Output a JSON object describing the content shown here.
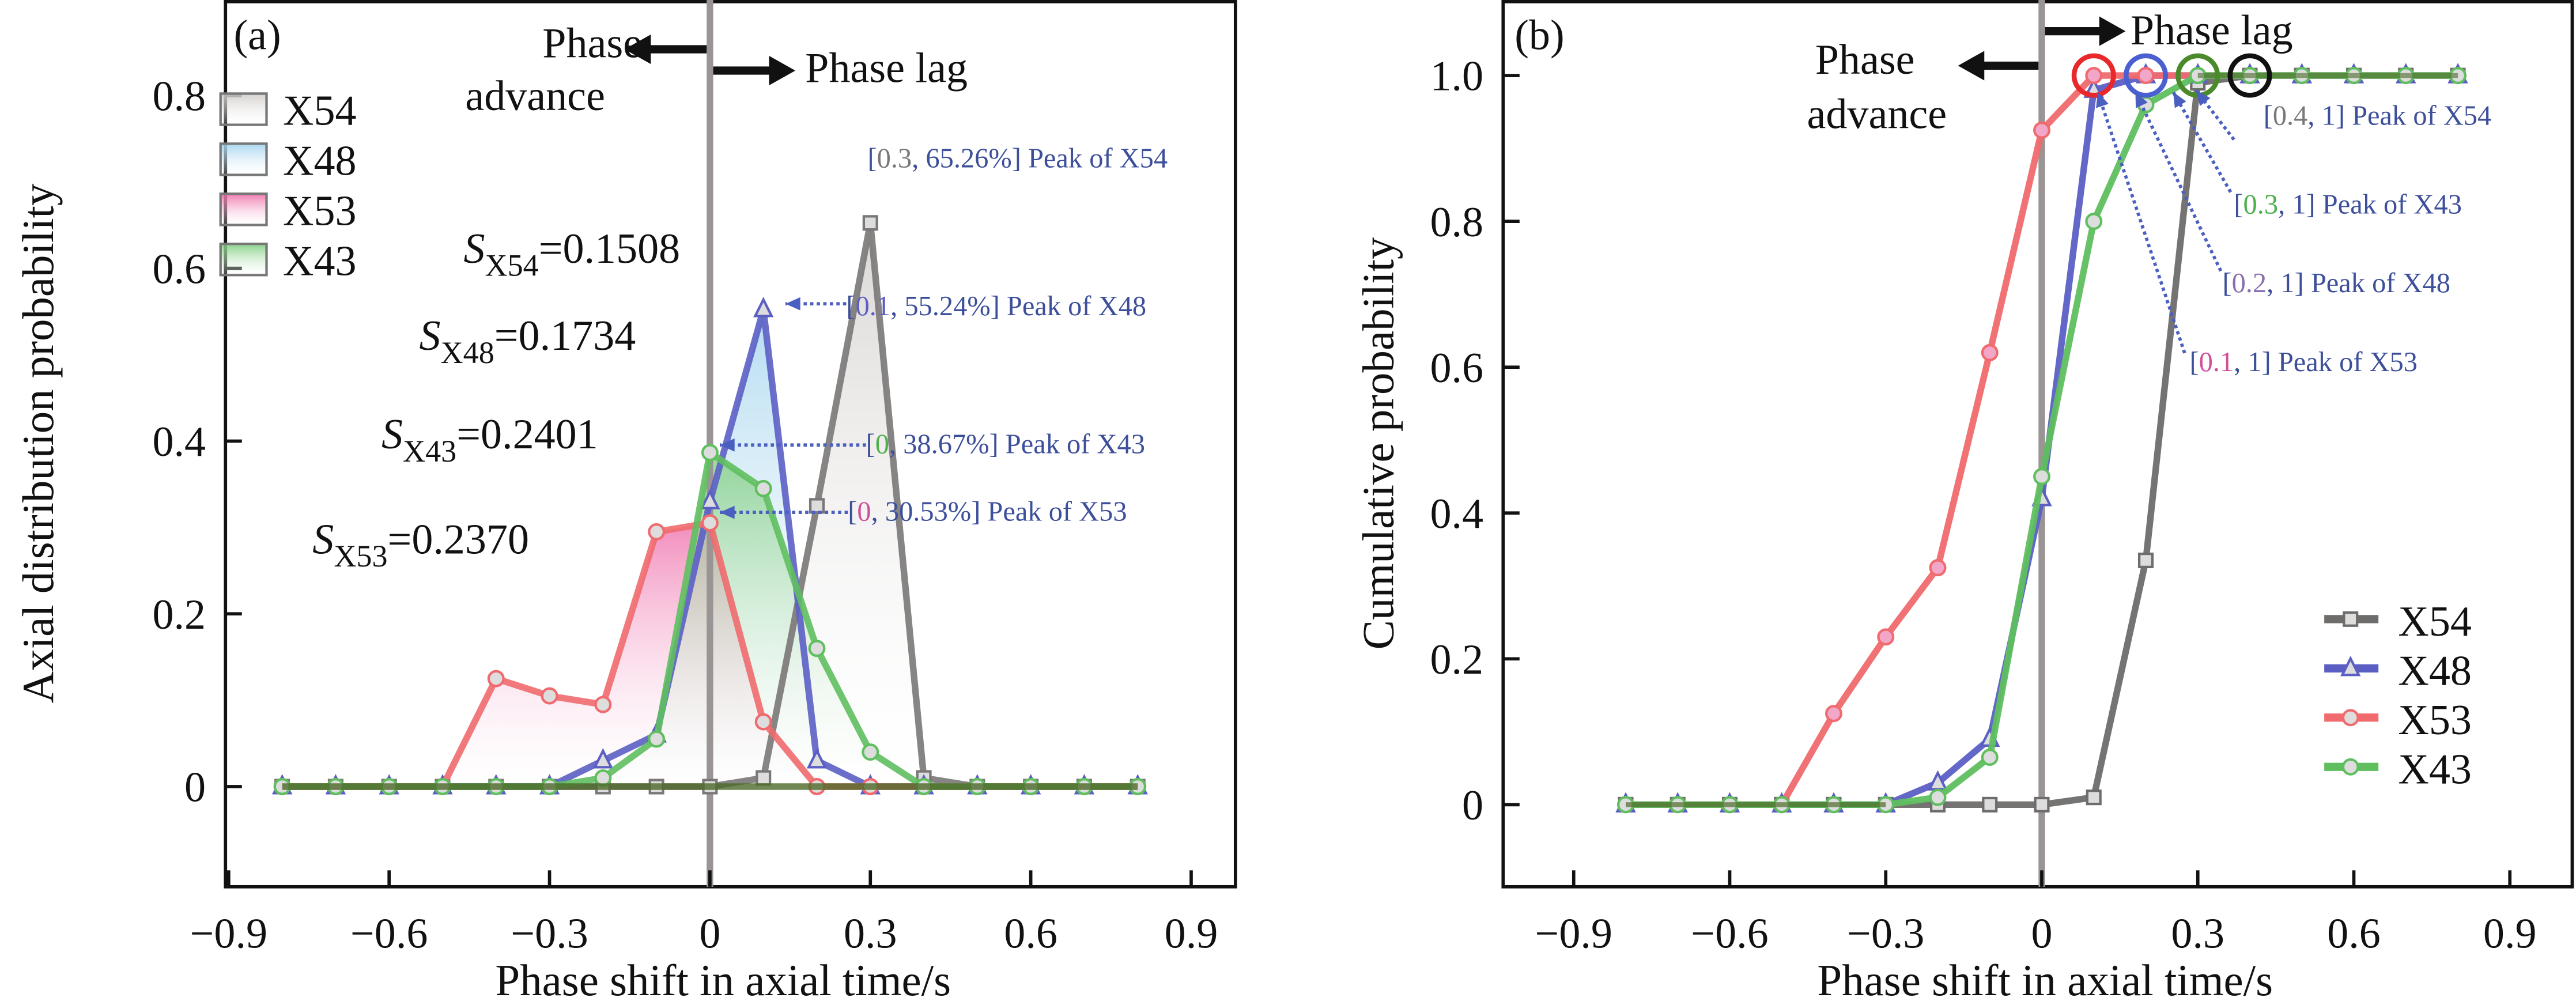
{
  "chart_data": [
    {
      "type": "area",
      "panel_label": "(a)",
      "xlabel": "Phase shift in axial time/s",
      "ylabel": "Axial distribution probability",
      "xlim": [
        -0.9,
        0.9
      ],
      "ylim": [
        -0.1,
        0.9
      ],
      "xticks": [
        "-0.9",
        "-0.6",
        "-0.3",
        "0",
        "0.3",
        "0.6",
        "0.9"
      ],
      "yticks": [
        "0",
        "0.2",
        "0.4",
        "0.6",
        "0.8"
      ],
      "grid": false,
      "legend_position": "top-left",
      "phase_advance_label": "Phase advance",
      "phase_advance_word1": "Phase",
      "phase_advance_word2": "advance",
      "phase_lag_label": "Phase lag",
      "x": [
        -0.8,
        -0.7,
        -0.6,
        -0.5,
        -0.4,
        -0.3,
        -0.2,
        -0.1,
        0,
        0.1,
        0.2,
        0.3,
        0.4,
        0.5,
        0.6,
        0.7,
        0.8
      ],
      "series": [
        {
          "name": "X54",
          "color": "#7a7777",
          "fill": "#cfcbc8",
          "marker": "square",
          "values": [
            0,
            0,
            0,
            0,
            0,
            0,
            0,
            0,
            0,
            0.01,
            0.325,
            0.6526,
            0.01,
            0,
            0,
            0,
            0
          ]
        },
        {
          "name": "X48",
          "color": "#5b5fc4",
          "fill": "#9fd2ee",
          "marker": "triangle",
          "values": [
            0,
            0,
            0,
            0,
            0,
            0,
            0.03,
            0.06,
            0.33,
            0.5524,
            0.03,
            0,
            0,
            0,
            0,
            0,
            0
          ]
        },
        {
          "name": "X53",
          "color": "#f06a6e",
          "fill": "#ee6aa8",
          "marker": "circle",
          "values": [
            0,
            0,
            0,
            0,
            0.125,
            0.105,
            0.095,
            0.295,
            0.3053,
            0.075,
            0,
            0,
            0,
            0,
            0,
            0,
            0
          ]
        },
        {
          "name": "X43",
          "color": "#5fbf5f",
          "fill": "#7dcc7d",
          "marker": "circle",
          "values": [
            0,
            0,
            0,
            0,
            0,
            0,
            0.01,
            0.055,
            0.3867,
            0.345,
            0.16,
            0.04,
            0,
            0,
            0,
            0,
            0
          ]
        }
      ],
      "s_values": [
        {
          "sym": "S",
          "sub": "X54",
          "val": "=0.1508"
        },
        {
          "sym": "S",
          "sub": "X48",
          "val": "=0.1734"
        },
        {
          "sym": "S",
          "sub": "X43",
          "val": "=0.2401"
        },
        {
          "sym": "S",
          "sub": "X53",
          "val": "=0.2370"
        }
      ],
      "annotations": [
        {
          "open": "[",
          "num": "0.3",
          "num_color": "#7a7777",
          "rest": ", 65.26%] Peak of X54"
        },
        {
          "open": "[",
          "num": "0.1",
          "num_color": "#5b5fc4",
          "rest": ", 55.24%] Peak of X48"
        },
        {
          "open": "[",
          "num": "0",
          "num_color": "#4cb04c",
          "rest": ", 38.67%] Peak of X43"
        },
        {
          "open": "[",
          "num": "0",
          "num_color": "#d0509a",
          "rest": ", 30.53%] Peak of X53"
        }
      ]
    },
    {
      "type": "line",
      "panel_label": "(b)",
      "xlabel": "Phase shift in axial time/s",
      "ylabel": "Cumulative probability",
      "xlim": [
        -0.9,
        0.9
      ],
      "ylim": [
        -0.1,
        1.1
      ],
      "xticks": [
        "-0.9",
        "-0.6",
        "-0.3",
        "0",
        "0.3",
        "0.6",
        "0.9"
      ],
      "yticks": [
        "0",
        "0.2",
        "0.4",
        "0.6",
        "0.8",
        "1.0"
      ],
      "grid": false,
      "legend_position": "bottom-right",
      "phase_advance_word1": "Phase",
      "phase_advance_word2": "advance",
      "phase_lag_label": "Phase lag",
      "x": [
        -0.8,
        -0.7,
        -0.6,
        -0.5,
        -0.4,
        -0.3,
        -0.2,
        -0.1,
        0,
        0.1,
        0.2,
        0.3,
        0.4,
        0.5,
        0.6,
        0.7,
        0.8
      ],
      "series": [
        {
          "name": "X54",
          "color": "#6f6c6c",
          "marker": "square",
          "values": [
            0,
            0,
            0,
            0,
            0,
            0,
            0,
            0,
            0,
            0.01,
            0.335,
            0.99,
            1,
            1,
            1,
            1,
            1
          ]
        },
        {
          "name": "X48",
          "color": "#5b5fc4",
          "marker": "triangle",
          "values": [
            0,
            0,
            0,
            0,
            0,
            0,
            0.03,
            0.09,
            0.42,
            0.98,
            1,
            1,
            1,
            1,
            1,
            1,
            1
          ]
        },
        {
          "name": "X53",
          "color": "#f06a6e",
          "marker": "circle",
          "values": [
            0,
            0,
            0,
            0,
            0.125,
            0.23,
            0.325,
            0.62,
            0.925,
            1,
            1,
            1,
            1,
            1,
            1,
            1,
            1
          ]
        },
        {
          "name": "X43",
          "color": "#5fbf5f",
          "marker": "circle",
          "values": [
            0,
            0,
            0,
            0,
            0,
            0,
            0.01,
            0.065,
            0.45,
            0.8,
            0.96,
            1,
            1,
            1,
            1,
            1,
            1
          ]
        }
      ],
      "peak_circles": [
        {
          "x": 0.1,
          "y": 1,
          "color": "#e8282a"
        },
        {
          "x": 0.2,
          "y": 1,
          "color": "#4a5fd0"
        },
        {
          "x": 0.3,
          "y": 1,
          "color": "#4a8a2a"
        },
        {
          "x": 0.4,
          "y": 1,
          "color": "#111111"
        }
      ],
      "annotations": [
        {
          "open": "[",
          "num": "0.4",
          "num_color": "#7a7777",
          "rest": ", 1] Peak of X54"
        },
        {
          "open": "[",
          "num": "0.3",
          "num_color": "#4cb04c",
          "rest": ", 1] Peak of X43"
        },
        {
          "open": "[",
          "num": "0.2",
          "num_color": "#8a6fb0",
          "rest": ", 1] Peak of X48"
        },
        {
          "open": "[",
          "num": "0.1",
          "num_color": "#d0509a",
          "rest": ", 1] Peak of X53"
        }
      ]
    }
  ]
}
